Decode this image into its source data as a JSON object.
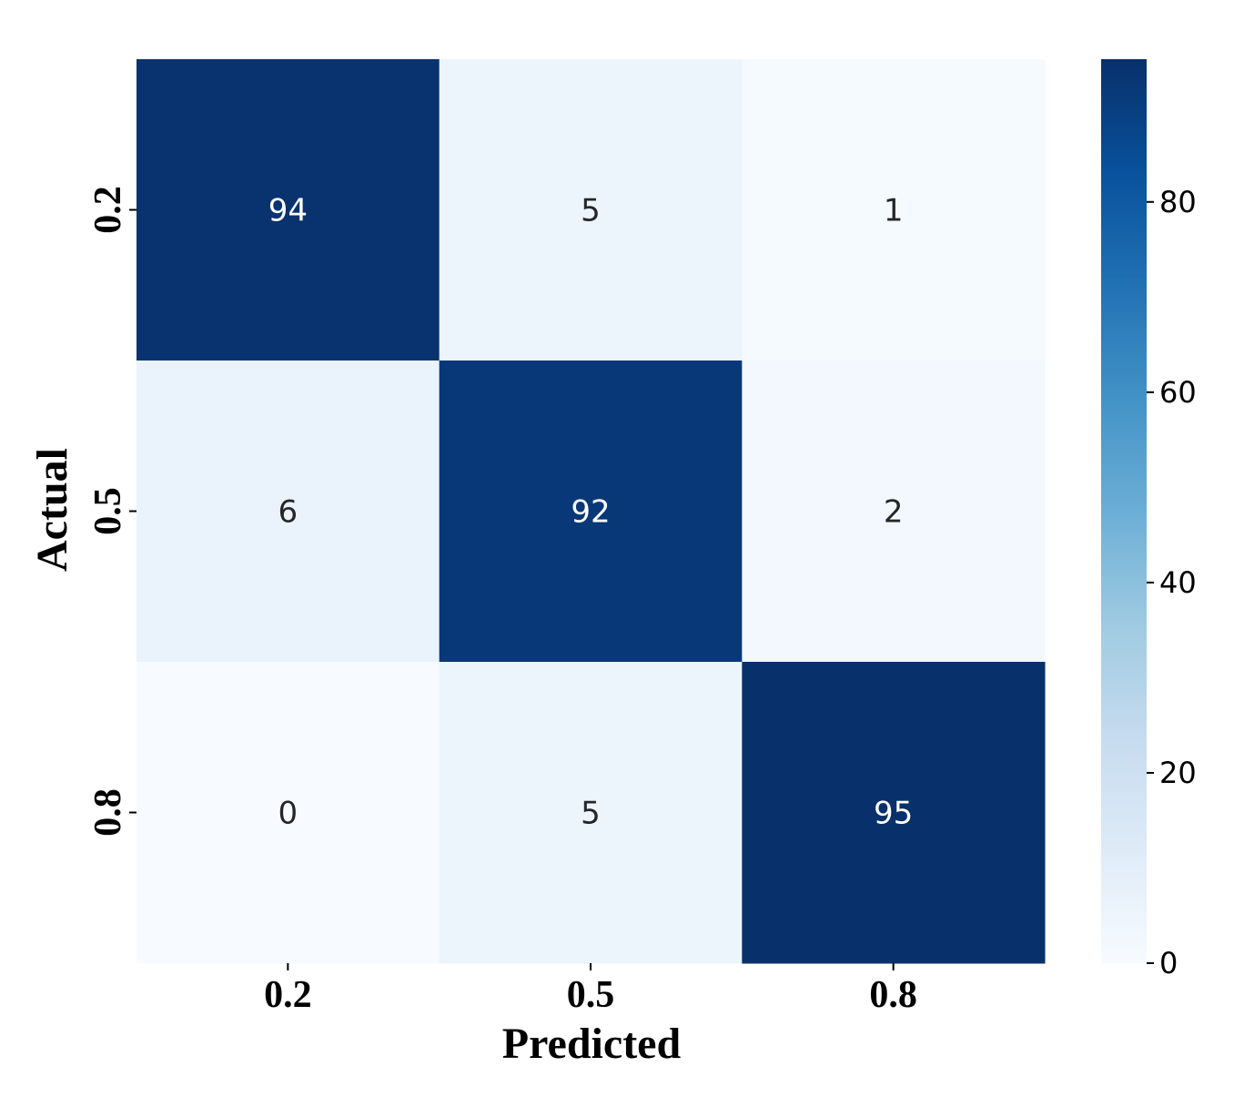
{
  "chart_data": {
    "type": "heatmap",
    "title": "",
    "xlabel": "Predicted",
    "ylabel": "Actual",
    "x_categories": [
      "0.2",
      "0.5",
      "0.8"
    ],
    "y_categories": [
      "0.2",
      "0.5",
      "0.8"
    ],
    "values": [
      [
        94,
        5,
        1
      ],
      [
        6,
        92,
        2
      ],
      [
        0,
        5,
        95
      ]
    ],
    "colorbar": {
      "min": 0,
      "max": 95,
      "ticks": [
        0,
        20,
        40,
        60,
        80
      ],
      "tick_labels": [
        "0",
        "20",
        "40",
        "60",
        "80"
      ],
      "colormap": "Blues",
      "colors": [
        "#f7fbff",
        "#deebf7",
        "#c6dbef",
        "#9ecae1",
        "#6baed6",
        "#4292c6",
        "#2171b5",
        "#08519c",
        "#08306b"
      ]
    },
    "annotation_text_dark": "#262626",
    "annotation_text_light": "#ffffff"
  }
}
